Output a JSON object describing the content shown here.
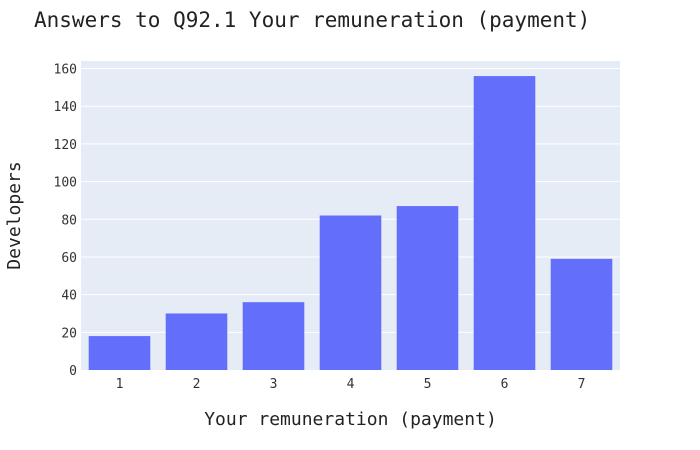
{
  "chart_data": {
    "type": "bar",
    "title": "Answers to Q92.1 Your remuneration (payment)",
    "xlabel": "Your remuneration (payment)",
    "ylabel": "Developers",
    "categories": [
      "1",
      "2",
      "3",
      "4",
      "5",
      "6",
      "7"
    ],
    "values": [
      18,
      30,
      36,
      82,
      87,
      156,
      59
    ],
    "ylim": [
      0,
      164
    ],
    "yticks": [
      "0",
      "20",
      "40",
      "60",
      "80",
      "100",
      "120",
      "140",
      "160"
    ],
    "grid": true,
    "colors": {
      "bar": "#636efa",
      "plot_bg": "#e5ecf6",
      "grid": "#ffffff"
    }
  }
}
